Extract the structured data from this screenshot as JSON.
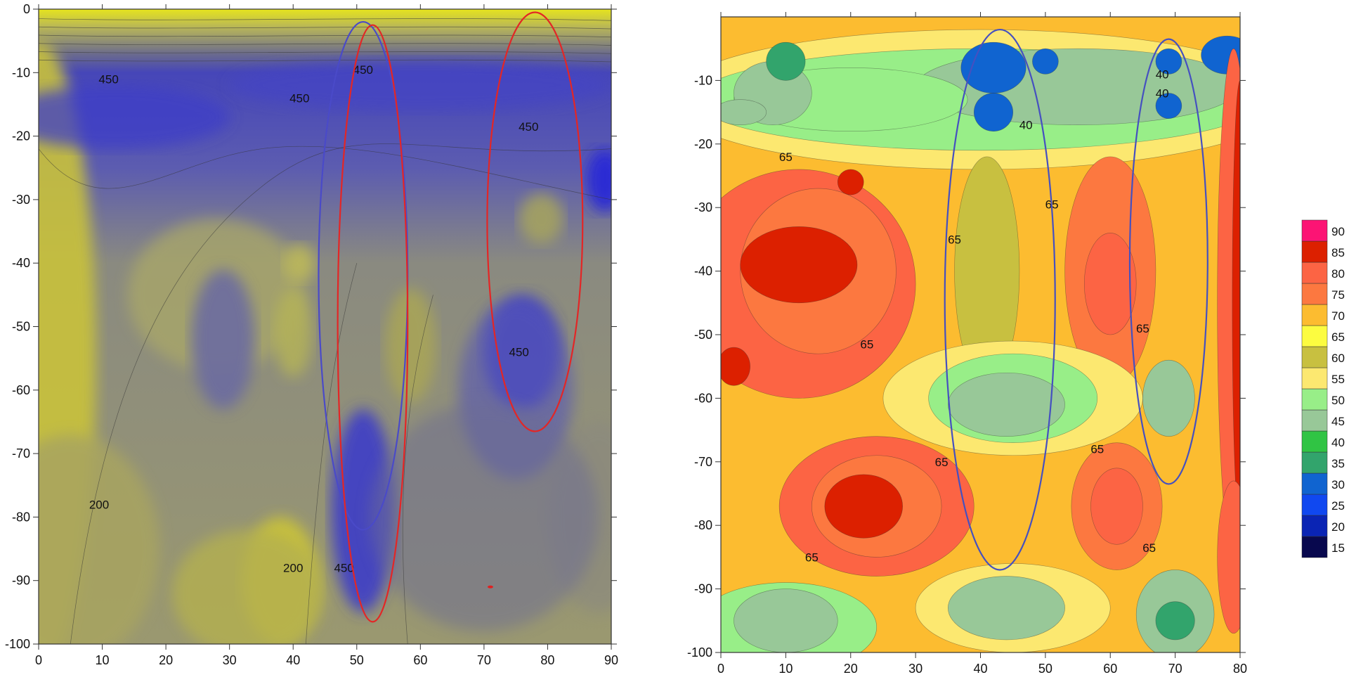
{
  "chart_data": [
    {
      "type": "contour",
      "xlim": [
        0,
        90
      ],
      "ylim": [
        -100,
        0
      ],
      "x_ticks": [
        0,
        10,
        20,
        30,
        40,
        50,
        60,
        70,
        80,
        90
      ],
      "y_ticks": [
        0,
        -10,
        -20,
        -30,
        -40,
        -50,
        -60,
        -70,
        -80,
        -90,
        -100
      ],
      "contour_labels": [
        {
          "text": "450",
          "x": 11,
          "y": -11
        },
        {
          "text": "450",
          "x": 51,
          "y": -9.5
        },
        {
          "text": "450",
          "x": 41,
          "y": -14
        },
        {
          "text": "450",
          "x": 77,
          "y": -18.5
        },
        {
          "text": "450",
          "x": 75.5,
          "y": -54
        },
        {
          "text": "450",
          "x": 48,
          "y": -88
        },
        {
          "text": "200",
          "x": 9.5,
          "y": -78
        },
        {
          "text": "200",
          "x": 40,
          "y": -88
        }
      ],
      "ellipses": [
        {
          "color": "#4a4ac8",
          "cx": 51,
          "cy": -42,
          "rx": 7,
          "ry": 40
        },
        {
          "color": "#e32626",
          "cx": 52.5,
          "cy": -49.5,
          "rx": 5.5,
          "ry": 47
        },
        {
          "color": "#e32626",
          "cx": 78,
          "cy": -33.5,
          "rx": 7.5,
          "ry": 33
        }
      ],
      "colors": {
        "low": "#c9c23a",
        "mid": "#7c7c80",
        "high": "#3d3dc8",
        "top": "#ecea1a"
      }
    },
    {
      "type": "contour",
      "xlim": [
        0,
        80
      ],
      "ylim": [
        -100,
        0
      ],
      "x_ticks": [
        0,
        10,
        20,
        30,
        40,
        50,
        60,
        70,
        80
      ],
      "y_ticks": [
        -10,
        -20,
        -30,
        -40,
        -50,
        -60,
        -70,
        -80,
        -90,
        -100
      ],
      "contour_labels": [
        {
          "text": "40",
          "x": 68,
          "y": -9
        },
        {
          "text": "40",
          "x": 68,
          "y": -12
        },
        {
          "text": "40",
          "x": 47,
          "y": -17
        },
        {
          "text": "65",
          "x": 10,
          "y": -22
        },
        {
          "text": "65",
          "x": 51,
          "y": -29.5
        },
        {
          "text": "65",
          "x": 36,
          "y": -35
        },
        {
          "text": "65",
          "x": 22.5,
          "y": -51.5
        },
        {
          "text": "65",
          "x": 65,
          "y": -49
        },
        {
          "text": "65",
          "x": 58,
          "y": -68
        },
        {
          "text": "65",
          "x": 34,
          "y": -70
        },
        {
          "text": "65",
          "x": 66,
          "y": -83.5
        },
        {
          "text": "65",
          "x": 14,
          "y": -85
        }
      ],
      "ellipses": [
        {
          "color": "#4550c0",
          "cx": 43,
          "cy": -44.5,
          "rx": 8.5,
          "ry": 42.5
        },
        {
          "color": "#4550c0",
          "cx": 69,
          "cy": -38.5,
          "rx": 6,
          "ry": 35
        }
      ],
      "colorbar": {
        "levels": [
          15,
          20,
          25,
          30,
          35,
          40,
          45,
          50,
          55,
          60,
          65,
          70,
          75,
          80,
          85,
          90
        ],
        "colors": [
          "#08084e",
          "#0a24b4",
          "#1048f0",
          "#1064d0",
          "#32a46c",
          "#30c444",
          "#98c898",
          "#98ee88",
          "#fce870",
          "#c8c040",
          "#fcfc40",
          "#fcbc30",
          "#fc7840",
          "#fc6444",
          "#dc2000",
          "#fc1474"
        ]
      }
    }
  ]
}
